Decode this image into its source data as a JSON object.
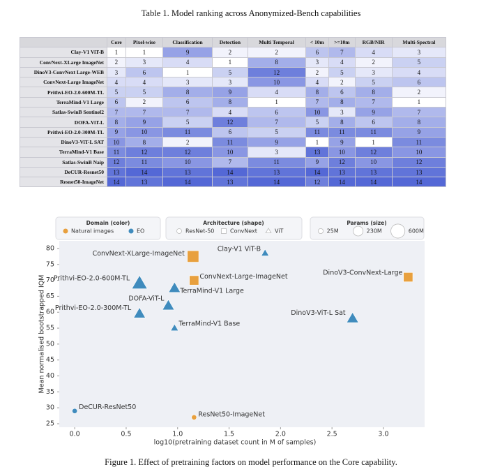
{
  "table_caption": "Table 1. Model ranking across Anonymized-Bench capabilities",
  "table": {
    "columns": [
      "Core",
      "Pixel-wise",
      "Classification",
      "Detection",
      "Multi Temporal",
      "< 10m",
      ">=10m",
      "RGB/NIR",
      "Multi-Spectral"
    ],
    "rows": [
      [
        "Clay-V1 ViT-B",
        1,
        1,
        9,
        2,
        2,
        6,
        7,
        4,
        3
      ],
      [
        "ConvNext-XLarge ImageNet",
        2,
        3,
        4,
        1,
        8,
        3,
        4,
        2,
        5
      ],
      [
        "DinoV3-ConvNext Large-WEB",
        3,
        6,
        1,
        5,
        12,
        2,
        5,
        3,
        4
      ],
      [
        "ConvNext-Large ImageNet",
        4,
        4,
        3,
        3,
        10,
        4,
        2,
        5,
        6
      ],
      [
        "Prithvi-EO-2.0-600M-TL",
        5,
        5,
        8,
        9,
        4,
        8,
        6,
        8,
        2
      ],
      [
        "TerraMind-V1 Large",
        6,
        2,
        6,
        8,
        1,
        7,
        8,
        7,
        1
      ],
      [
        "Satlas-SwinB Sentinel2",
        7,
        7,
        7,
        4,
        6,
        10,
        3,
        9,
        7
      ],
      [
        "DOFA-ViT-L",
        8,
        9,
        5,
        12,
        7,
        5,
        8,
        6,
        8
      ],
      [
        "Prithvi-EO-2.0-300M-TL",
        9,
        10,
        11,
        6,
        5,
        11,
        11,
        11,
        9
      ],
      [
        "DinoV3-ViT-L SAT",
        10,
        8,
        2,
        11,
        9,
        1,
        9,
        1,
        11
      ],
      [
        "TerraMind-V1 Base",
        11,
        12,
        12,
        10,
        3,
        13,
        10,
        12,
        10
      ],
      [
        "Satlas-SwinB Naip",
        12,
        11,
        10,
        7,
        11,
        9,
        12,
        10,
        12
      ],
      [
        "DeCUR-Resnet50",
        13,
        14,
        13,
        14,
        13,
        14,
        13,
        13,
        13
      ],
      [
        "Resnet50-ImageNet",
        14,
        13,
        14,
        13,
        14,
        12,
        14,
        14,
        14
      ]
    ]
  },
  "chart_data": {
    "type": "scatter",
    "xlabel": "log10(pretraining dataset count in M of samples)",
    "ylabel": "Mean normalised bootstrapped IQM",
    "xlim": [
      -0.15,
      3.4
    ],
    "xticks": [
      {
        "value": 0,
        "label": "0.0"
      },
      0.5,
      {
        "value": 1,
        "label": "1.0"
      },
      1.5,
      {
        "value": 2,
        "label": "2.0"
      },
      2.5,
      {
        "value": 3,
        "label": "3.0"
      }
    ],
    "ylim": [
      23.9,
      82.4
    ],
    "yticks": [
      25,
      30,
      35,
      40,
      45,
      50,
      55,
      60,
      65,
      70,
      75,
      80
    ],
    "grid": false,
    "color_legend_title": "Domain (color)",
    "shape_legend_title": "Architecture (shape)",
    "size_legend_title": "Params (size)",
    "shapes": [
      {
        "name": "ResNet-50",
        "marker": "circle"
      },
      {
        "name": "ConvNext",
        "marker": "square"
      },
      {
        "name": "ViT",
        "marker": "triangle"
      }
    ],
    "sizes": [
      {
        "value": 25,
        "label": "25M"
      },
      {
        "value": 230,
        "label": "230M"
      },
      {
        "value": 600,
        "label": "600M"
      }
    ],
    "series": [
      {
        "name": "Natural images",
        "color": "#e8a03e",
        "points": [
          {
            "label": "ConvNext-XLarge-ImageNet",
            "x": 1.15,
            "y": 77.5,
            "size": 350,
            "marker": "square"
          },
          {
            "label": "DinoV3-ConvNext-Large",
            "x": 3.24,
            "y": 71,
            "size": 200,
            "marker": "square"
          },
          {
            "label": "ConvNext-Large-ImageNet",
            "x": 1.16,
            "y": 70,
            "size": 200,
            "marker": "square"
          },
          {
            "label": "ResNet50-ImageNet",
            "x": 1.16,
            "y": 27,
            "size": 25,
            "marker": "circle"
          }
        ]
      },
      {
        "name": "EO",
        "color": "#3f8bbd",
        "points": [
          {
            "label": "Clay-V1 ViT-B",
            "x": 1.85,
            "y": 78.5,
            "size": 86,
            "marker": "triangle"
          },
          {
            "label": "Prithvi-EO-2.0-600M-TL",
            "x": 0.63,
            "y": 69,
            "size": 600,
            "marker": "triangle"
          },
          {
            "label": "TerraMind-V1 Large",
            "x": 0.97,
            "y": 67.5,
            "size": 300,
            "marker": "triangle"
          },
          {
            "label": "DOFA-ViT-L",
            "x": 0.91,
            "y": 62,
            "size": 300,
            "marker": "triangle"
          },
          {
            "label": "Prithvi-EO-2.0-300M-TL",
            "x": 0.63,
            "y": 59.5,
            "size": 300,
            "marker": "triangle"
          },
          {
            "label": "DinoV3-ViT-L Sat",
            "x": 2.7,
            "y": 58,
            "size": 300,
            "marker": "triangle"
          },
          {
            "label": "TerraMind-V1 Base",
            "x": 0.97,
            "y": 55,
            "size": 86,
            "marker": "triangle"
          },
          {
            "label": "DeCUR-ResNet50",
            "x": 0.0,
            "y": 29,
            "size": 25,
            "marker": "circle"
          }
        ]
      }
    ]
  },
  "figure_caption": "Figure 1. Effect of pretraining factors on model performance on the Core capability."
}
